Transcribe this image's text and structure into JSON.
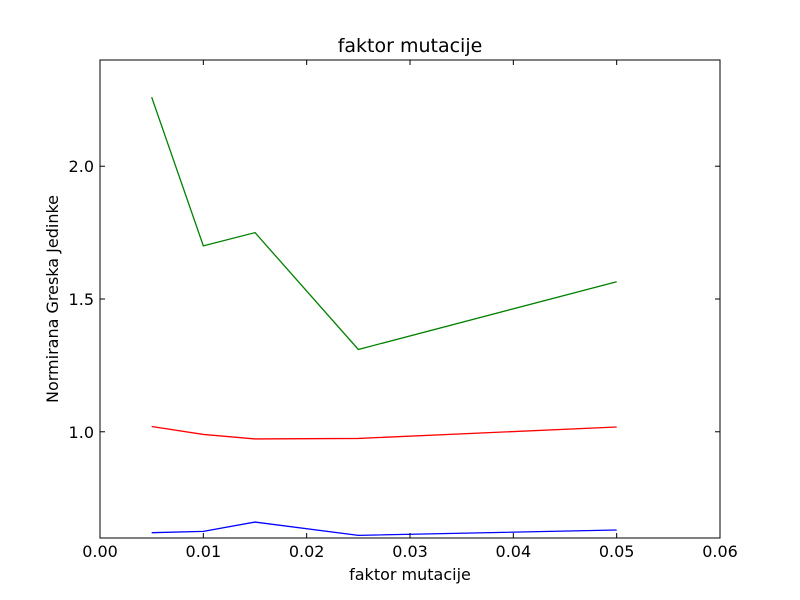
{
  "chart_data": {
    "type": "line",
    "title": "faktor mutacije",
    "xlabel": "faktor mutacije",
    "ylabel": "Normirana Greska Jedinke",
    "xlim": [
      0.0,
      0.06
    ],
    "ylim": [
      0.6,
      2.4
    ],
    "xticks": [
      0.0,
      0.01,
      0.02,
      0.03,
      0.04,
      0.05,
      0.06
    ],
    "xtick_labels": [
      "0.00",
      "0.01",
      "0.02",
      "0.03",
      "0.04",
      "0.05",
      "0.06"
    ],
    "yticks": [
      1.0,
      1.5,
      2.0
    ],
    "ytick_labels": [
      "1.0",
      "1.5",
      "2.0"
    ],
    "grid": false,
    "x": [
      0.005,
      0.01,
      0.015,
      0.025,
      0.05
    ],
    "series": [
      {
        "color": "#008000",
        "values": [
          2.26,
          1.7,
          1.75,
          1.31,
          1.565
        ]
      },
      {
        "color": "#ff0000",
        "values": [
          1.02,
          0.99,
          0.973,
          0.975,
          1.018
        ]
      },
      {
        "color": "#0000ff",
        "values": [
          0.62,
          0.625,
          0.66,
          0.61,
          0.63
        ]
      }
    ]
  }
}
